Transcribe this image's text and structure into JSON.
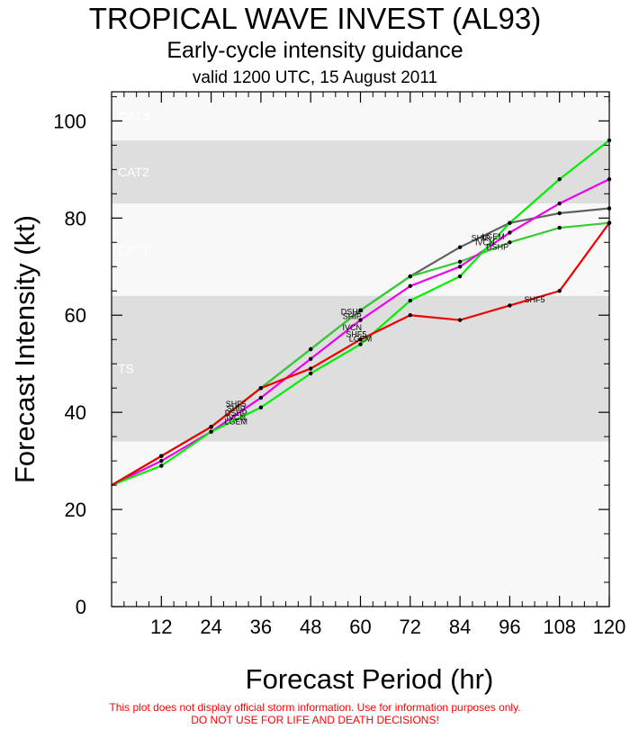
{
  "title": "TROPICAL WAVE INVEST (AL93)",
  "subtitle": "Early-cycle intensity guidance",
  "valid_time": "valid 1200 UTC, 15 August 2011",
  "disclaimer_1": "This plot does not display official storm information. Use for information purposes only.",
  "disclaimer_2": "DO NOT USE FOR LIFE AND DEATH DECISIONS!",
  "chart_data": {
    "type": "line",
    "xlabel": "Forecast Period (hr)",
    "ylabel": "Forecast Intensity (kt)",
    "xlim": [
      0,
      120
    ],
    "ylim": [
      0,
      106
    ],
    "xticks": [
      12,
      24,
      36,
      48,
      60,
      72,
      84,
      96,
      108,
      120
    ],
    "yticks": [
      0,
      20,
      40,
      60,
      80,
      100
    ],
    "bands": [
      {
        "label": "TS",
        "from": 34,
        "to": 64,
        "color": "#dedede"
      },
      {
        "label": "CAT1",
        "from": 64,
        "to": 83,
        "color": "#f8f8f8"
      },
      {
        "label": "CAT2",
        "from": 83,
        "to": 96,
        "color": "#dedede"
      },
      {
        "label": "CAT3",
        "from": 96,
        "to": 106,
        "color": "#f8f8f8"
      }
    ],
    "below_band_color": "#f8f8f8",
    "series": [
      {
        "name": "SHIP",
        "color": "#606060",
        "x": [
          0,
          12,
          24,
          36,
          48,
          60,
          72,
          84,
          96,
          108,
          120
        ],
        "values": [
          25,
          31,
          37,
          45,
          53,
          61,
          68,
          74,
          79,
          81,
          82
        ]
      },
      {
        "name": "DSHP",
        "color": "#33cc33",
        "x": [
          0,
          12,
          24,
          36,
          48,
          60,
          72,
          84,
          96,
          108,
          120
        ],
        "values": [
          25,
          31,
          37,
          45,
          53,
          61,
          68,
          71,
          75,
          78,
          79
        ]
      },
      {
        "name": "IVCN",
        "color": "#ee00ee",
        "x": [
          0,
          12,
          24,
          36,
          48,
          60,
          72,
          84,
          96,
          108,
          120
        ],
        "values": [
          25,
          30,
          36,
          43,
          51,
          59,
          66,
          70,
          77,
          83,
          88
        ]
      },
      {
        "name": "LGEM",
        "color": "#00ee00",
        "x": [
          0,
          12,
          24,
          36,
          48,
          60,
          72,
          84,
          96,
          108,
          120
        ],
        "values": [
          25,
          29,
          36,
          41,
          48,
          54,
          63,
          68,
          79,
          88,
          96
        ]
      },
      {
        "name": "SHF5",
        "color": "#ee0000",
        "x": [
          0,
          12,
          24,
          36,
          48,
          60,
          72,
          84,
          96,
          108,
          120
        ],
        "values": [
          25,
          31,
          37,
          45,
          49,
          55,
          60,
          59,
          62,
          65,
          79
        ]
      }
    ],
    "point_labels": [
      {
        "series": "SHIP",
        "text": "SHIP",
        "x": 30,
        "y": 40.2
      },
      {
        "series": "DSHP",
        "text": "DSHP",
        "x": 30,
        "y": 39.3
      },
      {
        "series": "IVCN",
        "text": "IVCN",
        "x": 30,
        "y": 38.4
      },
      {
        "series": "LGEM",
        "text": "LGEM",
        "x": 30,
        "y": 37.5
      },
      {
        "series": "SHF5",
        "text": "SHF5",
        "x": 30,
        "y": 41.1
      },
      {
        "series": "SHIP",
        "text": "SHIP",
        "x": 58,
        "y": 59.2
      },
      {
        "series": "DSHP",
        "text": "DSHP",
        "x": 58,
        "y": 60.1
      },
      {
        "series": "IVCN",
        "text": "IVCN",
        "x": 58,
        "y": 56.9
      },
      {
        "series": "LGEM",
        "text": "LGEM",
        "x": 60,
        "y": 54.6
      },
      {
        "series": "SHF5",
        "text": "SHF5",
        "x": 59,
        "y": 55.5
      },
      {
        "series": "SHIP",
        "text": "SHIP",
        "x": 89,
        "y": 75.3
      },
      {
        "series": "DSHP",
        "text": "DSHP",
        "x": 93,
        "y": 73.5
      },
      {
        "series": "IVCN",
        "text": "IVCN",
        "x": 90,
        "y": 74.4
      },
      {
        "series": "LGEM",
        "text": "LGEM",
        "x": 92,
        "y": 75.6
      },
      {
        "series": "SHF5",
        "text": "SHF5",
        "x": 102,
        "y": 62.6
      }
    ]
  }
}
